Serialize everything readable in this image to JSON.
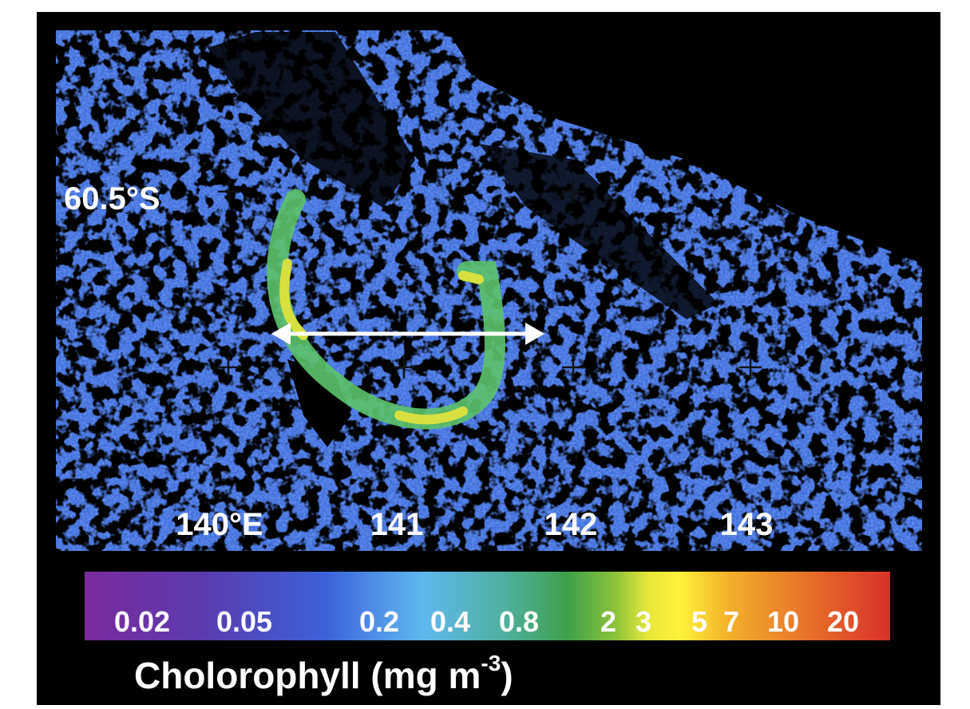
{
  "map": {
    "lat_label": "60.5°S",
    "lon_labels": [
      "140°E",
      "141",
      "142",
      "143"
    ],
    "colorbar": {
      "labels": [
        "0.02",
        "0.05",
        "0.2",
        "0.4",
        "0.8",
        "2",
        "3",
        "5",
        "7",
        "10",
        "20"
      ]
    },
    "title": {
      "text": "Cholorophyll (mg m",
      "superscript": "-3",
      "suffix": ")"
    }
  }
}
